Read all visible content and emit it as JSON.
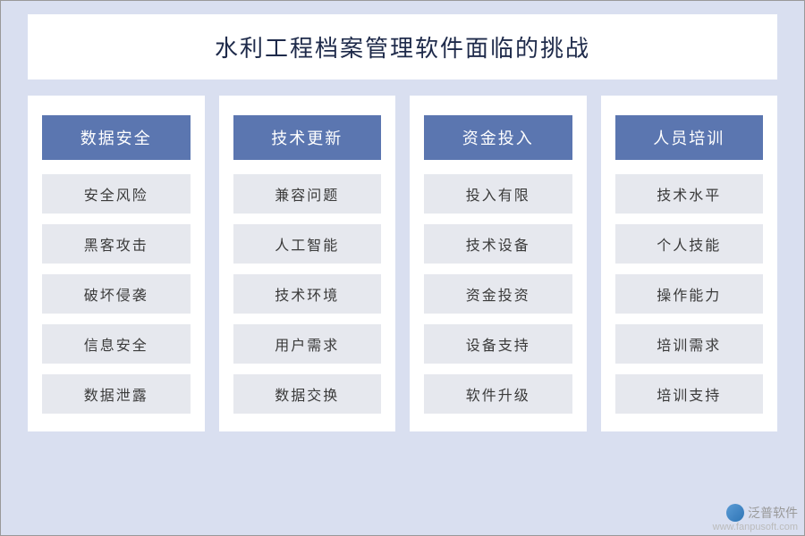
{
  "title": "水利工程档案管理软件面临的挑战",
  "title_color": "#1e2a4a",
  "title_fontsize": 26,
  "outer_bg": "#d9dff0",
  "panel_bg": "#ffffff",
  "header_bg": "#5b76b0",
  "header_text_color": "#ffffff",
  "item_bg": "#e6e8ee",
  "item_text_color": "#3a3a3a",
  "columns": [
    {
      "header": "数据安全",
      "items": [
        "安全风险",
        "黑客攻击",
        "破坏侵袭",
        "信息安全",
        "数据泄露"
      ]
    },
    {
      "header": "技术更新",
      "items": [
        "兼容问题",
        "人工智能",
        "技术环境",
        "用户需求",
        "数据交换"
      ]
    },
    {
      "header": "资金投入",
      "items": [
        "投入有限",
        "技术设备",
        "资金投资",
        "设备支持",
        "软件升级"
      ]
    },
    {
      "header": "人员培训",
      "items": [
        "技术水平",
        "个人技能",
        "操作能力",
        "培训需求",
        "培训支持"
      ]
    }
  ],
  "watermark": {
    "brand": "泛普软件",
    "url": "www.fanpusoft.com"
  }
}
